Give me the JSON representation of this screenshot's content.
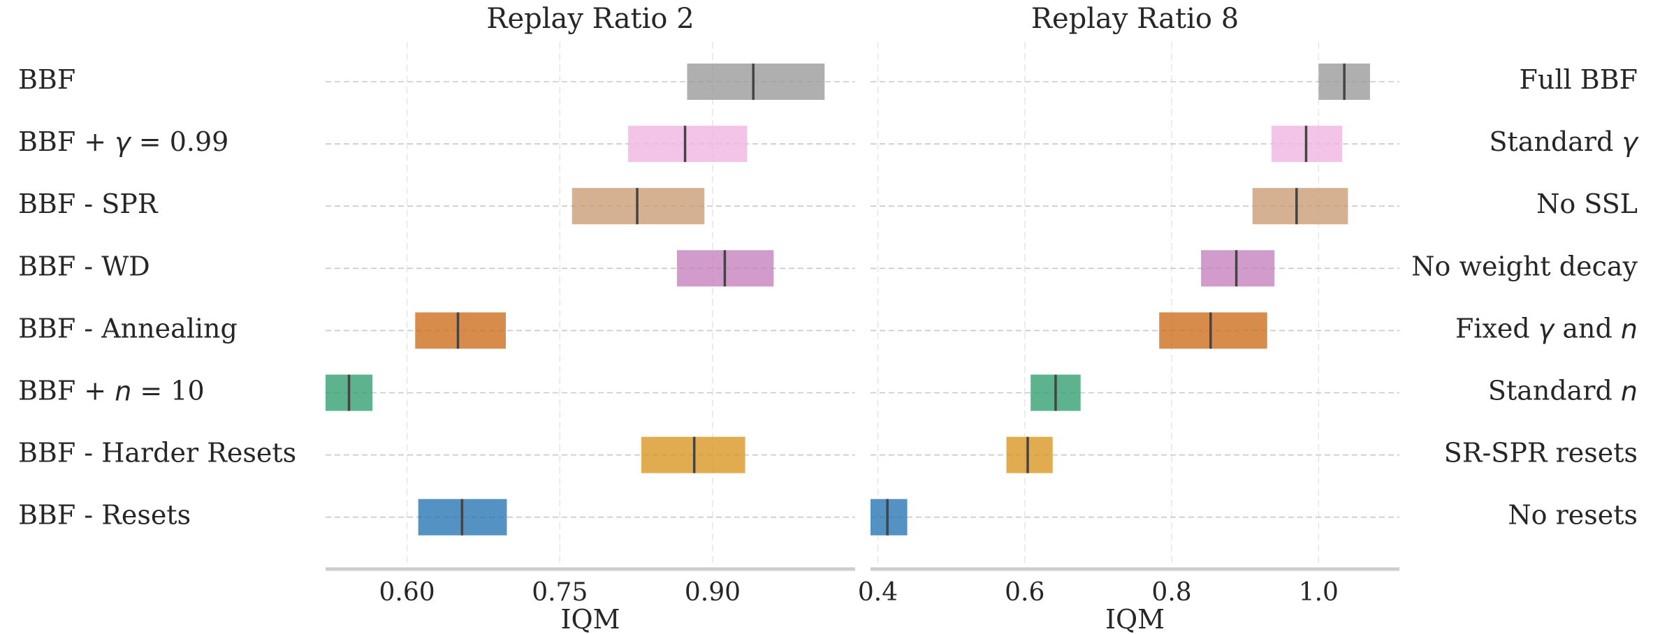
{
  "chart_data": {
    "type": "interval",
    "xlabel": "IQM",
    "row_labels_left": [
      {
        "pre": "BBF",
        "math": "",
        "post": ""
      },
      {
        "pre": "BBF + ",
        "math": "γ",
        "post": " = 0.99"
      },
      {
        "pre": "BBF - SPR",
        "math": "",
        "post": ""
      },
      {
        "pre": "BBF - WD",
        "math": "",
        "post": ""
      },
      {
        "pre": "BBF - Annealing",
        "math": "",
        "post": ""
      },
      {
        "pre": "BBF + ",
        "math": "n",
        "post": " = 10"
      },
      {
        "pre": "BBF - Harder Resets",
        "math": "",
        "post": ""
      },
      {
        "pre": "BBF - Resets",
        "math": "",
        "post": ""
      }
    ],
    "row_labels_right": [
      {
        "pre": "Full BBF",
        "math": "",
        "post": ""
      },
      {
        "pre": "Standard ",
        "math": "γ",
        "post": ""
      },
      {
        "pre": "No SSL",
        "math": "",
        "post": ""
      },
      {
        "pre": "No weight decay",
        "math": "",
        "post": ""
      },
      {
        "pre": "Fixed ",
        "math": "γ",
        "post": " and ",
        "math2": "n"
      },
      {
        "pre": "Standard ",
        "math": "n",
        "post": ""
      },
      {
        "pre": "SR-SPR resets",
        "math": "",
        "post": ""
      },
      {
        "pre": "No resets",
        "math": "",
        "post": ""
      }
    ],
    "colors": [
      "#999999",
      "#f0b3e0",
      "#c99a72",
      "#c47fbc",
      "#cc6b1a",
      "#2f9e6e",
      "#d9951e",
      "#2373b2"
    ],
    "panels": [
      {
        "title": "Replay Ratio 2",
        "xlim": [
          0.52,
          1.04
        ],
        "xticks": [
          0.6,
          0.75,
          0.9
        ],
        "xtick_labels": [
          "0.60",
          "0.75",
          "0.90"
        ],
        "series": [
          {
            "low": 0.875,
            "high": 1.01,
            "iqm": 0.94
          },
          {
            "low": 0.817,
            "high": 0.934,
            "iqm": 0.873
          },
          {
            "low": 0.762,
            "high": 0.892,
            "iqm": 0.826
          },
          {
            "low": 0.865,
            "high": 0.96,
            "iqm": 0.912
          },
          {
            "low": 0.608,
            "high": 0.697,
            "iqm": 0.65
          },
          {
            "low": 0.52,
            "high": 0.566,
            "iqm": 0.543
          },
          {
            "low": 0.83,
            "high": 0.932,
            "iqm": 0.882
          },
          {
            "low": 0.611,
            "high": 0.698,
            "iqm": 0.654
          }
        ]
      },
      {
        "title": "Replay Ratio 8",
        "xlim": [
          0.39,
          1.11
        ],
        "xticks": [
          0.4,
          0.6,
          0.8,
          1.0
        ],
        "xtick_labels": [
          "0.4",
          "0.6",
          "0.8",
          "1.0"
        ],
        "series": [
          {
            "low": 1.0,
            "high": 1.07,
            "iqm": 1.035
          },
          {
            "low": 0.936,
            "high": 1.032,
            "iqm": 0.983
          },
          {
            "low": 0.91,
            "high": 1.04,
            "iqm": 0.97
          },
          {
            "low": 0.84,
            "high": 0.94,
            "iqm": 0.888
          },
          {
            "low": 0.783,
            "high": 0.93,
            "iqm": 0.853
          },
          {
            "low": 0.608,
            "high": 0.676,
            "iqm": 0.642
          },
          {
            "low": 0.575,
            "high": 0.638,
            "iqm": 0.604
          },
          {
            "low": 0.39,
            "high": 0.44,
            "iqm": 0.413
          }
        ]
      }
    ],
    "grid": true,
    "legend": "none"
  }
}
